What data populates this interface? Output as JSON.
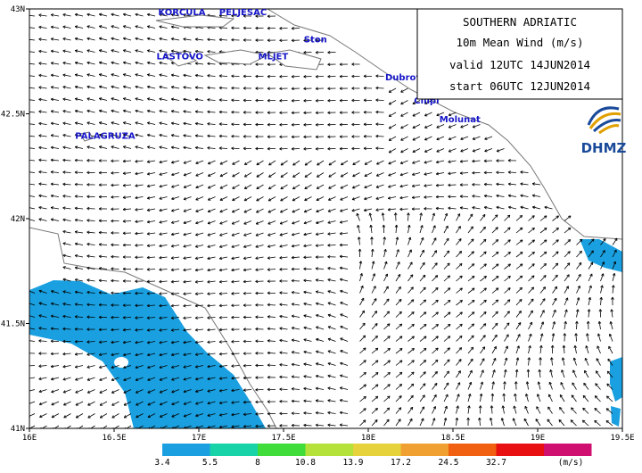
{
  "map": {
    "lat_labels": [
      "43N",
      "42.5N",
      "42N",
      "41.5N",
      "41N"
    ],
    "lon_labels": [
      "16E",
      "16.5E",
      "17E",
      "17.5E",
      "18E",
      "18.5E",
      "19E",
      "19.5E"
    ],
    "places": [
      {
        "name": "KORCULA",
        "lon": 16.76,
        "lat": 42.97
      },
      {
        "name": "PELJESAC",
        "lon": 17.12,
        "lat": 42.97
      },
      {
        "name": "Ston",
        "lon": 17.62,
        "lat": 42.84
      },
      {
        "name": "MLJET",
        "lon": 17.35,
        "lat": 42.76
      },
      {
        "name": "LASTOVO",
        "lon": 16.75,
        "lat": 42.76
      },
      {
        "name": "Dubrovnik",
        "lon": 18.1,
        "lat": 42.66
      },
      {
        "name": "Cilipi",
        "lon": 18.27,
        "lat": 42.55
      },
      {
        "name": "Molunat",
        "lon": 18.42,
        "lat": 42.46
      },
      {
        "name": "PALAGRUZA",
        "lon": 16.27,
        "lat": 42.38
      }
    ]
  },
  "info": {
    "title": "SOUTHERN ADRIATIC",
    "variable": "10m  Mean Wind (m/s)",
    "valid": "valid 12UTC 14JUN2014",
    "start": "start 06UTC 12JUN2014"
  },
  "logo": {
    "text": "DHMZ"
  },
  "legend": {
    "unit": "(m/s)",
    "bins": [
      {
        "label": "3.4",
        "color": "#1aa0e0"
      },
      {
        "label": "5.5",
        "color": "#18d2a8"
      },
      {
        "label": "8",
        "color": "#3fdc3a"
      },
      {
        "label": "10.8",
        "color": "#b4e23a"
      },
      {
        "label": "13.9",
        "color": "#e6d23a"
      },
      {
        "label": "17.2",
        "color": "#f0a030"
      },
      {
        "label": "24.5",
        "color": "#f06010"
      },
      {
        "label": "32.7",
        "color": "#e81010"
      },
      {
        "label": "",
        "color": "#d01070"
      }
    ]
  },
  "colors": {
    "land": "#ffffff",
    "coast": "#777777",
    "arrows": "#000000",
    "speed_fill": "#1aa0e0"
  }
}
